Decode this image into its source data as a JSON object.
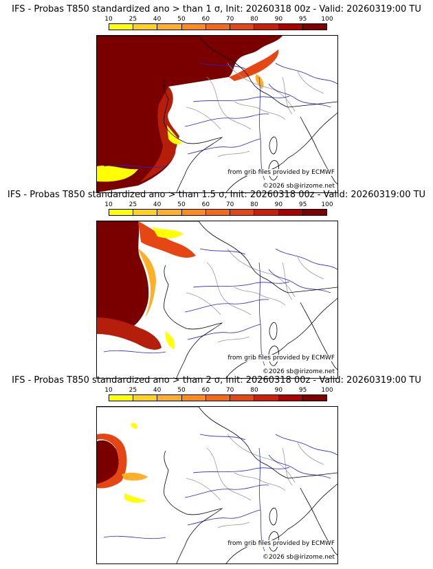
{
  "colorbar": {
    "ticks": [
      "10",
      "25",
      "40",
      "50",
      "60",
      "70",
      "80",
      "90",
      "95",
      "100"
    ],
    "colors": [
      "#ffff00",
      "#ffd21e",
      "#ffaf28",
      "#ff8c19",
      "#f56a14",
      "#e64614",
      "#cd1e0a",
      "#aa0000",
      "#800000"
    ]
  },
  "colors": {
    "coast": "#000000",
    "rivers": "#2323d8",
    "borders": "#9a9a9a",
    "prob_max": "#7a0000",
    "prob_high": "#b41e0a",
    "prob_mid": "#e64614",
    "prob_low": "#ffaf28",
    "prob_min": "#ffff00"
  },
  "panels": [
    {
      "title": "IFS - Probas T850  standardized ano > than 1 σ, Init: 20260318 00z - Valid: 20260319:00 TU",
      "source": "from grib files provided by ECMWF",
      "copyright": "©2026 sb@irizome.net"
    },
    {
      "title": "IFS - Probas T850  standardized ano > than 1.5 σ, Init: 20260318 00z - Valid: 20260319:00 TU",
      "source": "from grib files provided by ECMWF",
      "copyright": "©2026 sb@irizome.net"
    },
    {
      "title": "IFS - Probas T850  standardized ano > than 2 σ, Init: 20260318 00z - Valid: 20260319:00 TU",
      "source": "from grib files provided by ECMWF",
      "copyright": "©2026 sb@irizome.net"
    }
  ]
}
